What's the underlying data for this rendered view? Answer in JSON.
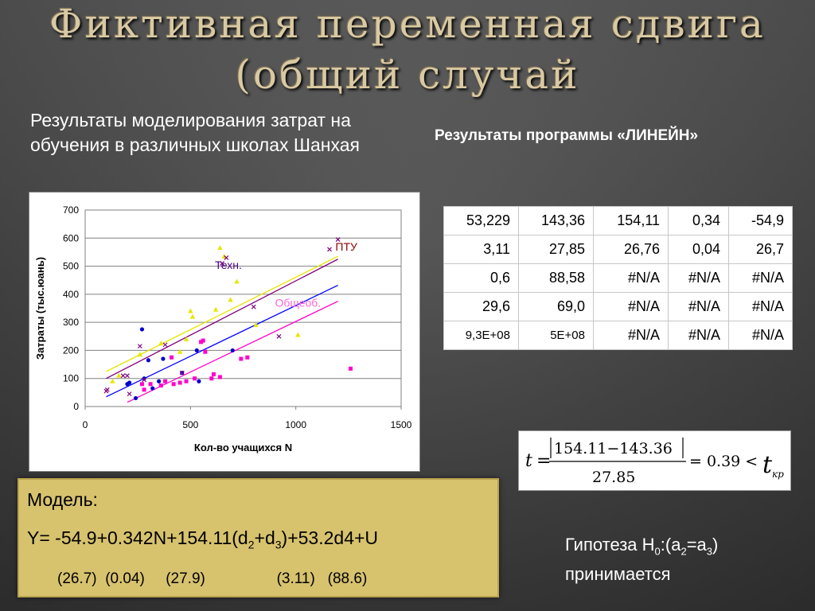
{
  "slide": {
    "title_line1": "Фиктивная переменная сдвига",
    "title_line2": "(общий случай",
    "description": "Результаты моделирования затрат на обучения в различных школах Шанхая",
    "linest_title": "Результаты программы «ЛИНЕЙН»"
  },
  "linest_table": [
    [
      "53,229",
      "143,36",
      "154,11",
      "0,34",
      "-54,9"
    ],
    [
      "3,11",
      "27,85",
      "26,76",
      "0,04",
      "26,7"
    ],
    [
      "0,6",
      "88,58",
      "#N/A",
      "#N/A",
      "#N/A"
    ],
    [
      "29,6",
      "69,0",
      "#N/A",
      "#N/A",
      "#N/A"
    ],
    [
      "9,3E+08",
      "5E+08",
      "#N/A",
      "#N/A",
      "#N/A"
    ]
  ],
  "formula": {
    "lhs": "t",
    "eq": "=",
    "numerator": "154.11−143.36",
    "denominator": "27.85",
    "result": "= 0.39 <",
    "t_kr": "t",
    "kr_sub": "кр"
  },
  "model": {
    "label": "Модель:",
    "eq_a": "Y= -54.9+0.342N+154.11(d",
    "sub_2": "2",
    "eq_b": "+d",
    "sub_3": "3",
    "eq_c": ")+53.2d4+U",
    "errors": "(26.7)  (0.04)     (27.9)                 (3.11)   (88.6)"
  },
  "hypothesis": {
    "prefix": "Гипотеза H",
    "sub0": "0",
    "mid1": ":(a",
    "sub2": "2",
    "mid2": "=a",
    "sub3": "3",
    "suffix": ")",
    "line2": "принимается"
  },
  "chart_data": {
    "type": "scatter",
    "xlabel": "Кол-во учащихся  N",
    "ylabel": "Затраты (тыс.юань)",
    "xlim": [
      0,
      1500
    ],
    "ylim": [
      0,
      700
    ],
    "x_ticks": [
      0,
      500,
      1000,
      1500
    ],
    "y_ticks": [
      0,
      100,
      200,
      300,
      400,
      500,
      600,
      700
    ],
    "grid": "horizontal",
    "annotations": [
      {
        "text": "ПТУ",
        "x": 1240,
        "y": 555,
        "color": "#8b0000"
      },
      {
        "text": "Техн.",
        "x": 680,
        "y": 490,
        "color": "#4b0082"
      },
      {
        "text": "Общеоб.",
        "x": 1010,
        "y": 355,
        "color": "#ff66cc"
      }
    ],
    "series": [
      {
        "marker": "circle",
        "color": "#0000cc",
        "points": [
          [
            270,
            275
          ],
          [
            300,
            165
          ],
          [
            370,
            170
          ],
          [
            460,
            120
          ],
          [
            530,
            200
          ],
          [
            540,
            90
          ],
          [
            700,
            200
          ],
          [
            320,
            65
          ],
          [
            200,
            80
          ],
          [
            240,
            30
          ],
          [
            210,
            85
          ],
          [
            280,
            100
          ],
          [
            350,
            90
          ]
        ]
      },
      {
        "marker": "triangle",
        "color": "#e6e600",
        "points": [
          [
            130,
            90
          ],
          [
            160,
            110
          ],
          [
            260,
            185
          ],
          [
            360,
            225
          ],
          [
            450,
            195
          ],
          [
            480,
            240
          ],
          [
            500,
            340
          ],
          [
            510,
            320
          ],
          [
            620,
            345
          ],
          [
            640,
            565
          ],
          [
            660,
            535
          ],
          [
            690,
            380
          ],
          [
            720,
            445
          ],
          [
            810,
            290
          ],
          [
            1010,
            255
          ]
        ]
      },
      {
        "marker": "square",
        "color": "#ff00cc",
        "points": [
          [
            270,
            80
          ],
          [
            280,
            60
          ],
          [
            310,
            80
          ],
          [
            360,
            75
          ],
          [
            380,
            90
          ],
          [
            410,
            175
          ],
          [
            420,
            80
          ],
          [
            450,
            85
          ],
          [
            480,
            90
          ],
          [
            520,
            100
          ],
          [
            550,
            230
          ],
          [
            560,
            235
          ],
          [
            570,
            195
          ],
          [
            600,
            100
          ],
          [
            610,
            115
          ],
          [
            640,
            105
          ],
          [
            740,
            170
          ],
          [
            770,
            175
          ],
          [
            1260,
            135
          ]
        ]
      },
      {
        "marker": "cross",
        "color": "#800080",
        "points": [
          [
            100,
            55
          ],
          [
            105,
            60
          ],
          [
            180,
            110
          ],
          [
            200,
            110
          ],
          [
            210,
            45
          ],
          [
            260,
            215
          ],
          [
            280,
            95
          ],
          [
            380,
            220
          ],
          [
            460,
            120
          ],
          [
            650,
            510
          ],
          [
            670,
            530
          ],
          [
            800,
            355
          ],
          [
            920,
            250
          ],
          [
            1160,
            560
          ],
          [
            1200,
            595
          ]
        ]
      }
    ],
    "trend_lines": [
      {
        "name": "ПТУ",
        "color": "#800080",
        "x": [
          100,
          1200
        ],
        "y": [
          100,
          525
        ]
      },
      {
        "name": "Техн.",
        "color": "#e6e600",
        "x": [
          100,
          1200
        ],
        "y": [
          125,
          535
        ]
      },
      {
        "name": "",
        "color": "#0000ff",
        "x": [
          100,
          1200
        ],
        "y": [
          35,
          432
        ]
      },
      {
        "name": "Общеоб.",
        "color": "#ff00cc",
        "x": [
          200,
          1200
        ],
        "y": [
          15,
          375
        ]
      }
    ]
  }
}
